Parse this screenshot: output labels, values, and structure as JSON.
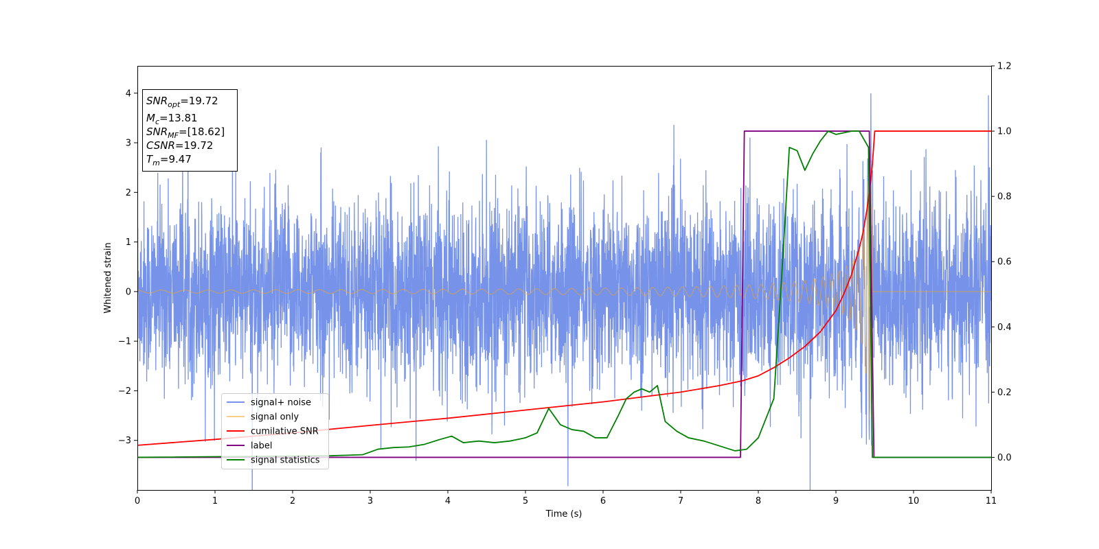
{
  "chart_data": {
    "type": "line",
    "title": "",
    "xlabel": "Time (s)",
    "ylabel": "Whitened strain",
    "xlim": [
      0,
      11
    ],
    "ylim": [
      -4,
      4.55
    ],
    "y2lim": [
      -0.1,
      1.2
    ],
    "x_ticks": [
      0,
      1,
      2,
      3,
      4,
      5,
      6,
      7,
      8,
      9,
      10,
      11
    ],
    "y_ticks": [
      -3,
      -2,
      -1,
      0,
      1,
      2,
      3,
      4
    ],
    "y2_ticks": [
      "0.0",
      "0.2",
      "0.4",
      "0.6",
      "0.8",
      "1.0",
      "1.2"
    ],
    "grid": false,
    "legend": {
      "placement": "lower-left",
      "entries": [
        "signal+ noise",
        "signal only",
        "cumilative SNR",
        "label",
        "signal statistics"
      ]
    },
    "info_box": {
      "placement": "top-left",
      "lines": [
        {
          "main": "SNR",
          "sub": "opt",
          "value": "=19.72"
        },
        {
          "main": "M",
          "sub": "c",
          "value": "=13.81"
        },
        {
          "main": "SNR",
          "sub": "MF",
          "value": "=[18.62]"
        },
        {
          "main": "CSNR",
          "sub": "",
          "value": "=19.72"
        },
        {
          "main": "T",
          "sub": "m",
          "value": "=9.47"
        }
      ]
    },
    "series": [
      {
        "name": "signal+ noise",
        "color": "#4169e1",
        "axis": "left",
        "kind": "noise",
        "std": 0.9,
        "x_range": [
          0,
          11
        ]
      },
      {
        "name": "signal only",
        "color": "#f5a623",
        "axis": "left",
        "kind": "chirp",
        "merger_time": 9.47,
        "amplitude_start": 0.03,
        "amplitude_peak": 2.6
      },
      {
        "name": "cumilative SNR",
        "color": "#ff0000",
        "axis": "right",
        "x": [
          0,
          1,
          2,
          3,
          4,
          5,
          6,
          6.5,
          7,
          7.5,
          7.8,
          8.0,
          8.2,
          8.4,
          8.6,
          8.8,
          9.0,
          9.1,
          9.2,
          9.3,
          9.35,
          9.4,
          9.45,
          9.47,
          9.5,
          11
        ],
        "y": [
          0.037,
          0.055,
          0.075,
          0.098,
          0.12,
          0.145,
          0.17,
          0.185,
          0.2,
          0.22,
          0.235,
          0.25,
          0.275,
          0.305,
          0.34,
          0.385,
          0.45,
          0.5,
          0.56,
          0.64,
          0.69,
          0.76,
          0.85,
          0.9,
          1.0,
          1.0
        ]
      },
      {
        "name": "label",
        "color": "#800080",
        "axis": "right",
        "x": [
          0,
          7.77,
          7.82,
          9.43,
          9.49,
          11
        ],
        "y": [
          0,
          0,
          1,
          1,
          0,
          0
        ]
      },
      {
        "name": "signal statistics",
        "color": "#008000",
        "axis": "right",
        "x": [
          0,
          2.5,
          2.9,
          3.1,
          3.3,
          3.5,
          3.7,
          3.9,
          4.05,
          4.2,
          4.4,
          4.6,
          4.8,
          5.0,
          5.15,
          5.3,
          5.45,
          5.6,
          5.75,
          5.9,
          6.05,
          6.2,
          6.3,
          6.4,
          6.5,
          6.6,
          6.7,
          6.8,
          6.95,
          7.1,
          7.3,
          7.5,
          7.7,
          7.85,
          8.0,
          8.1,
          8.2,
          8.3,
          8.4,
          8.5,
          8.6,
          8.7,
          8.8,
          8.9,
          9.0,
          9.2,
          9.3,
          9.42,
          9.47,
          9.5,
          11
        ],
        "y": [
          0,
          0.005,
          0.008,
          0.025,
          0.03,
          0.032,
          0.04,
          0.055,
          0.065,
          0.045,
          0.05,
          0.045,
          0.05,
          0.06,
          0.075,
          0.15,
          0.1,
          0.085,
          0.08,
          0.06,
          0.06,
          0.13,
          0.18,
          0.2,
          0.21,
          0.2,
          0.22,
          0.11,
          0.08,
          0.06,
          0.05,
          0.035,
          0.02,
          0.025,
          0.06,
          0.12,
          0.18,
          0.55,
          0.95,
          0.94,
          0.88,
          0.93,
          0.97,
          1.0,
          0.99,
          1.0,
          1.0,
          0.95,
          0.0,
          0.0,
          0.0
        ]
      }
    ]
  }
}
